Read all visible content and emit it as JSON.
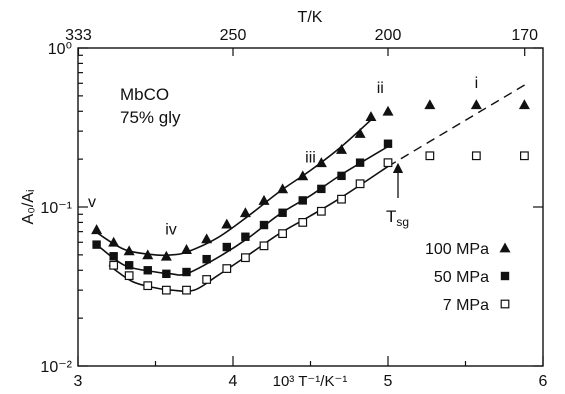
{
  "chart_data": {
    "type": "scatter",
    "xlabel": "10³ T⁻¹/K⁻¹",
    "ylabel": "A₀/Aᵢ",
    "top_axis_label": "T/K",
    "x_ticks": [
      {
        "value": 3,
        "label": "3"
      },
      {
        "value": 4,
        "label": "4"
      },
      {
        "value": 5,
        "label": "5"
      },
      {
        "value": 6,
        "label": "6"
      }
    ],
    "top_ticks": [
      {
        "value": 3.003,
        "label": "333"
      },
      {
        "value": 4.0,
        "label": "250"
      },
      {
        "value": 5.0,
        "label": "200"
      },
      {
        "value": 5.882,
        "label": "170"
      }
    ],
    "y_ticks": [
      {
        "value": 0.01,
        "label": "10⁻²"
      },
      {
        "value": 0.1,
        "label": "10⁻¹"
      },
      {
        "value": 1,
        "label": "10⁰"
      }
    ],
    "xlim": [
      3.0,
      6.0
    ],
    "ylim": [
      0.01,
      1.0
    ],
    "y_scale": "log",
    "grid": false,
    "legend_position": "bottom-right",
    "inset_text": [
      "MbCO",
      "75% gly"
    ],
    "series": [
      {
        "name": "100 MPa",
        "marker": "filled-triangle",
        "x": [
          3.12,
          3.23,
          3.33,
          3.45,
          3.57,
          3.7,
          3.83,
          3.96,
          4.08,
          4.2,
          4.32,
          4.45,
          4.57,
          4.7,
          4.82,
          4.89,
          5.0,
          5.27,
          5.57,
          5.88
        ],
        "y": [
          0.072,
          0.06,
          0.053,
          0.05,
          0.049,
          0.054,
          0.063,
          0.078,
          0.092,
          0.11,
          0.13,
          0.157,
          0.19,
          0.23,
          0.29,
          0.37,
          0.4,
          0.44,
          0.44,
          0.44
        ]
      },
      {
        "name": "50 MPa",
        "marker": "filled-square",
        "x": [
          3.12,
          3.23,
          3.33,
          3.45,
          3.57,
          3.7,
          3.83,
          3.96,
          4.08,
          4.2,
          4.32,
          4.45,
          4.57,
          4.7,
          4.82,
          5.0
        ],
        "y": [
          0.058,
          0.049,
          0.043,
          0.04,
          0.038,
          0.039,
          0.047,
          0.056,
          0.065,
          0.077,
          0.092,
          0.11,
          0.13,
          0.157,
          0.19,
          0.25
        ]
      },
      {
        "name": "7 MPa",
        "marker": "open-square",
        "x": [
          3.23,
          3.33,
          3.45,
          3.57,
          3.7,
          3.83,
          3.96,
          4.08,
          4.2,
          4.32,
          4.45,
          4.57,
          4.7,
          4.82,
          5.0,
          5.27,
          5.57,
          5.88
        ],
        "y": [
          0.043,
          0.037,
          0.032,
          0.03,
          0.03,
          0.035,
          0.041,
          0.048,
          0.057,
          0.068,
          0.08,
          0.094,
          0.112,
          0.14,
          0.19,
          0.21,
          0.21,
          0.21
        ]
      }
    ],
    "fit_curves": [
      {
        "x": [
          3.12,
          3.3,
          3.5,
          3.6,
          3.7,
          3.9,
          4.1,
          4.3,
          4.5,
          4.7,
          4.9
        ],
        "y": [
          0.069,
          0.054,
          0.05,
          0.05,
          0.052,
          0.064,
          0.088,
          0.125,
          0.17,
          0.24,
          0.36
        ]
      },
      {
        "x": [
          3.12,
          3.3,
          3.5,
          3.6,
          3.7,
          3.9,
          4.1,
          4.3,
          4.5,
          4.7,
          5.0
        ],
        "y": [
          0.058,
          0.043,
          0.039,
          0.038,
          0.038,
          0.048,
          0.064,
          0.09,
          0.118,
          0.16,
          0.24
        ]
      },
      {
        "x": [
          3.2,
          3.35,
          3.5,
          3.6,
          3.75,
          3.9,
          4.1,
          4.3,
          4.5,
          4.7,
          5.0
        ],
        "y": [
          0.043,
          0.034,
          0.031,
          0.03,
          0.03,
          0.037,
          0.05,
          0.068,
          0.088,
          0.115,
          0.18
        ]
      }
    ],
    "extrapolation": {
      "x": [
        5.0,
        5.9
      ],
      "y": [
        0.18,
        0.6
      ]
    },
    "annotations": [
      {
        "text": "v",
        "x": 3.09,
        "y": 0.1
      },
      {
        "text": "iv",
        "x": 3.6,
        "y": 0.067
      },
      {
        "text": "iii",
        "x": 4.5,
        "y": 0.19
      },
      {
        "text": "ii",
        "x": 4.95,
        "y": 0.52
      },
      {
        "text": "i",
        "x": 5.57,
        "y": 0.56
      }
    ],
    "tsg_label": {
      "text": "Tsg",
      "x": 5.12,
      "y": 0.062
    }
  }
}
